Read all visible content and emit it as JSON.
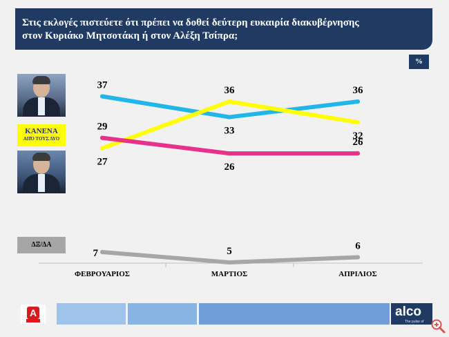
{
  "header": {
    "question_line1": "Στις εκλογές πιστεύετε ότι πρέπει να δοθεί δεύτερη ευκαιρία διακυβέρνησης",
    "question_line2": "στον Κυριάκο Μητσοτάκη ή στον Αλέξη Τσίπρα;"
  },
  "unit_badge": "%",
  "legend": {
    "kanena_line1": "ΚΑΝΕΝΑ",
    "kanena_line2": "ΑΠΌ ΤΟΥΣ ΔΥΟ",
    "dxda": "ΔΞ/ΔΑ"
  },
  "footer": {
    "brand": "alco",
    "tagline": "The pulse of society"
  },
  "colors": {
    "navy": "#1f3a63",
    "mitsotakis": "#21b5ea",
    "kanena": "#ffff00",
    "tsipras": "#e8318a",
    "dxda": "#a6a6a6"
  },
  "chart_data": {
    "type": "line",
    "categories": [
      "ΦΕΒΡΟΥΑΡΙΟΣ",
      "ΜΑΡΤΙΟΣ",
      "ΑΠΡΙΛΙΟΣ"
    ],
    "series": [
      {
        "key": "mitsotakis",
        "color": "#21b5ea",
        "values": [
          37,
          33,
          36
        ],
        "label_pos": [
          "above",
          "below",
          "above"
        ]
      },
      {
        "key": "kanena",
        "color": "#ffff00",
        "values": [
          27,
          36,
          32
        ],
        "label_pos": [
          "below",
          "above",
          "below"
        ]
      },
      {
        "key": "tsipras",
        "color": "#e8318a",
        "values": [
          29,
          26,
          26
        ],
        "label_pos": [
          "above",
          "below",
          "above"
        ]
      },
      {
        "key": "dxda",
        "color": "#a6a6a6",
        "values": [
          7,
          5,
          6
        ],
        "label_pos": [
          "left",
          "above",
          "above"
        ]
      }
    ],
    "ylim": [
      5,
      38
    ],
    "xlabel": "",
    "ylabel": ""
  }
}
